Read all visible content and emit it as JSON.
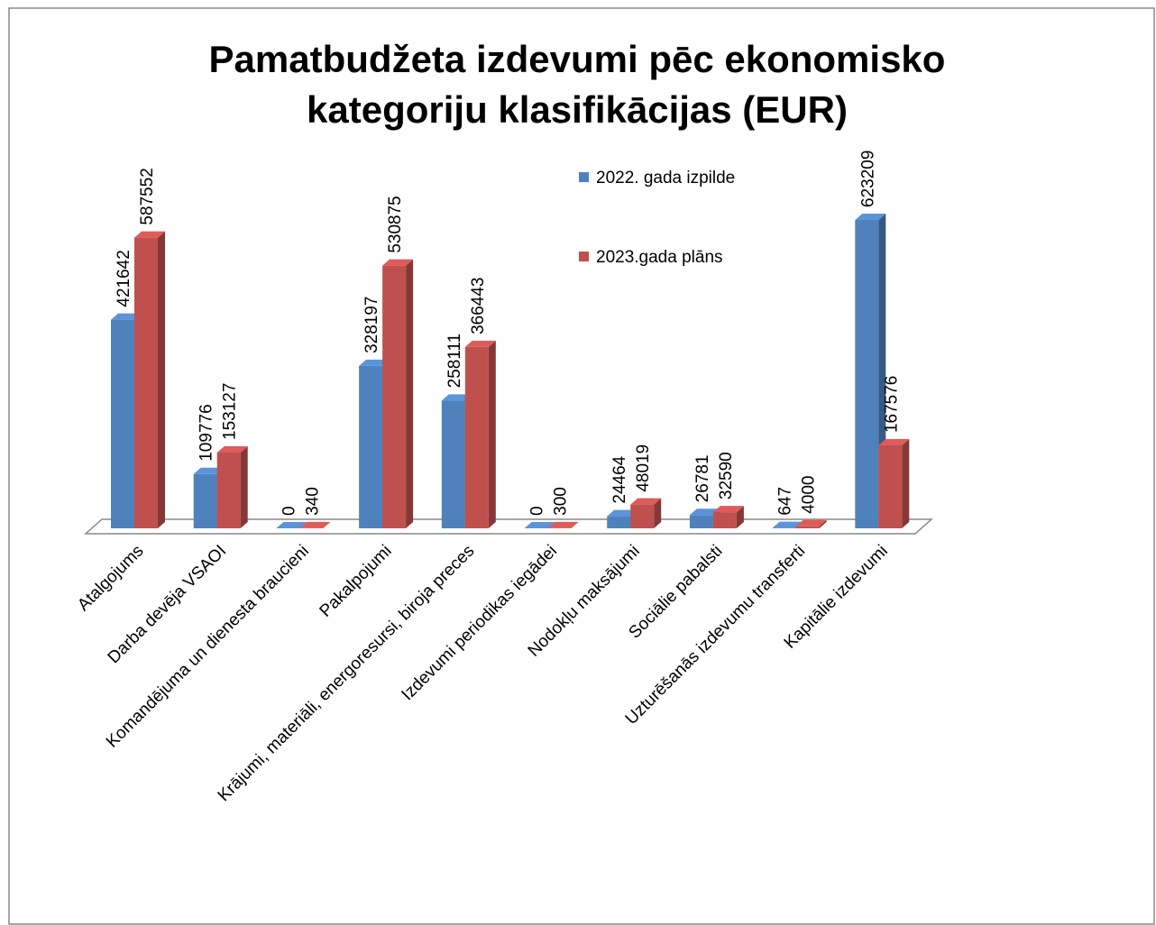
{
  "chart_data": {
    "type": "bar3d",
    "title": "Pamatbudžeta izdevumi pēc ekonomisko kategoriju klasifikācijas (EUR)",
    "categories": [
      "Atalgojums",
      "Darba devēja VSAOI",
      "Komandējuma un dienesta braucieni",
      "Pakalpojumi",
      "Krājumi, materiāli, energoresursi, biroja preces",
      "Izdevumi periodikas iegādei",
      "Nodokļu maksājumi",
      "Sociālie pabalsti",
      "Uzturēšanās izdevumu transferti",
      "Kapitālie izdevumi"
    ],
    "series": [
      {
        "name": "2022. gada izpilde",
        "color": "#4f81bd",
        "values": [
          421642,
          109776,
          0,
          328197,
          258111,
          0,
          24464,
          26781,
          647,
          623209
        ]
      },
      {
        "name": "2023.gada plāns",
        "color": "#c0504d",
        "values": [
          587552,
          153127,
          340,
          530875,
          366443,
          300,
          48019,
          32590,
          4000,
          167576
        ]
      }
    ],
    "legend": "top-right"
  }
}
